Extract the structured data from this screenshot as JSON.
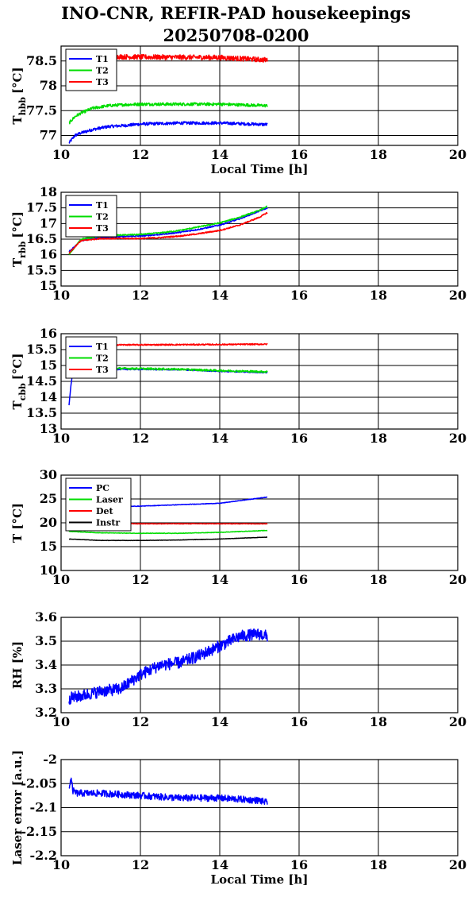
{
  "title": [
    "INO-CNR, REFIR-PAD housekeepings",
    "20250708-0200"
  ],
  "chart_data": [
    {
      "type": "line",
      "ylabel_main": "T",
      "ylabel_sub": "hbb",
      "ylabel_unit": "[°C]",
      "xlabel": "Local Time [h]",
      "xlim": [
        10,
        20
      ],
      "ylim": [
        76.8,
        78.8
      ],
      "xticks": [
        "10",
        "12",
        "14",
        "16",
        "18",
        "20"
      ],
      "yticks": [
        "77",
        "77.5",
        "78",
        "78.5"
      ],
      "grid": true,
      "legend": "top-left",
      "series": [
        {
          "name": "T1",
          "color": "#0000ff",
          "x": [
            10.2,
            10.35,
            10.5,
            10.8,
            11.2,
            11.6,
            12.0,
            13.0,
            14.0,
            15.2
          ],
          "y": [
            76.85,
            77.0,
            77.05,
            77.12,
            77.18,
            77.2,
            77.23,
            77.25,
            77.25,
            77.22
          ],
          "noise": 0.03
        },
        {
          "name": "T2",
          "color": "#00dd00",
          "x": [
            10.2,
            10.35,
            10.5,
            10.8,
            11.2,
            11.6,
            12.0,
            13.0,
            14.0,
            15.2
          ],
          "y": [
            77.25,
            77.38,
            77.45,
            77.55,
            77.6,
            77.62,
            77.63,
            77.63,
            77.63,
            77.6
          ],
          "noise": 0.03
        },
        {
          "name": "T3",
          "color": "#ff0000",
          "x": [
            10.2,
            12.0,
            14.0,
            15.2
          ],
          "y": [
            78.6,
            78.58,
            78.57,
            78.52
          ],
          "noise": 0.05
        }
      ]
    },
    {
      "type": "line",
      "ylabel_main": "T",
      "ylabel_sub": "rbb",
      "ylabel_unit": "[°C]",
      "xlabel": "",
      "xlim": [
        10,
        20
      ],
      "ylim": [
        15,
        18
      ],
      "xticks": [
        "10",
        "12",
        "14",
        "16",
        "18",
        "20"
      ],
      "yticks": [
        "15",
        "15.5",
        "16",
        "16.5",
        "17",
        "17.5",
        "18"
      ],
      "grid": true,
      "legend": "top-left",
      "series": [
        {
          "name": "T1",
          "color": "#0000ff",
          "x": [
            10.2,
            10.5,
            11.0,
            11.5,
            12.0,
            12.5,
            13.0,
            13.5,
            14.0,
            14.5,
            15.0,
            15.2
          ],
          "y": [
            16.1,
            16.45,
            16.55,
            16.58,
            16.6,
            16.65,
            16.72,
            16.82,
            16.95,
            17.15,
            17.4,
            17.5
          ],
          "noise": 0.02
        },
        {
          "name": "T2",
          "color": "#00dd00",
          "x": [
            10.2,
            10.5,
            11.0,
            11.5,
            12.0,
            12.5,
            13.0,
            13.5,
            14.0,
            14.5,
            15.0,
            15.2
          ],
          "y": [
            16.0,
            16.5,
            16.6,
            16.63,
            16.65,
            16.7,
            16.78,
            16.9,
            17.02,
            17.2,
            17.42,
            17.55
          ],
          "noise": 0.02
        },
        {
          "name": "T3",
          "color": "#ff0000",
          "x": [
            10.2,
            10.5,
            11.0,
            11.5,
            12.0,
            12.5,
            13.0,
            13.5,
            14.0,
            14.5,
            15.0,
            15.2
          ],
          "y": [
            16.05,
            16.45,
            16.52,
            16.52,
            16.52,
            16.55,
            16.6,
            16.68,
            16.78,
            16.95,
            17.2,
            17.35
          ],
          "noise": 0.02
        }
      ]
    },
    {
      "type": "line",
      "ylabel_main": "T",
      "ylabel_sub": "cbb",
      "ylabel_unit": "[°C]",
      "xlabel": "",
      "xlim": [
        10,
        20
      ],
      "ylim": [
        13,
        16
      ],
      "xticks": [
        "10",
        "12",
        "14",
        "16",
        "18",
        "20"
      ],
      "yticks": [
        "13",
        "13.5",
        "14",
        "14.5",
        "15",
        "15.5",
        "16"
      ],
      "grid": true,
      "legend": "top-left",
      "series": [
        {
          "name": "T1",
          "color": "#0000ff",
          "x": [
            10.2,
            10.25,
            10.3,
            10.6,
            12.0,
            13.0,
            14.0,
            15.2
          ],
          "y": [
            13.75,
            14.4,
            14.85,
            14.88,
            14.88,
            14.87,
            14.82,
            14.78
          ],
          "noise": 0.02
        },
        {
          "name": "T2",
          "color": "#00dd00",
          "x": [
            10.3,
            10.6,
            12.0,
            13.0,
            14.0,
            15.2
          ],
          "y": [
            14.92,
            14.92,
            14.9,
            14.88,
            14.84,
            14.8
          ],
          "noise": 0.03
        },
        {
          "name": "T3",
          "color": "#ff0000",
          "x": [
            10.3,
            12.0,
            14.0,
            15.2
          ],
          "y": [
            15.65,
            15.65,
            15.66,
            15.67
          ],
          "noise": 0.02
        }
      ]
    },
    {
      "type": "line",
      "ylabel_main": "T [°C]",
      "ylabel_sub": "",
      "ylabel_unit": "",
      "xlabel": "",
      "xlim": [
        10,
        20
      ],
      "ylim": [
        10,
        30
      ],
      "xticks": [
        "10",
        "12",
        "14",
        "16",
        "18",
        "20"
      ],
      "yticks": [
        "10",
        "15",
        "20",
        "25",
        "30"
      ],
      "grid": true,
      "legend": "top-left",
      "series": [
        {
          "name": "PC",
          "color": "#0000ff",
          "x": [
            10.2,
            11.0,
            12.0,
            13.0,
            14.0,
            15.2
          ],
          "y": [
            23.2,
            23.3,
            23.5,
            23.8,
            24.1,
            25.4
          ],
          "noise": 0.05
        },
        {
          "name": "Laser",
          "color": "#00dd00",
          "x": [
            10.2,
            11.0,
            12.0,
            13.0,
            14.0,
            15.2
          ],
          "y": [
            18.2,
            17.9,
            17.8,
            17.8,
            18.0,
            18.4
          ],
          "noise": 0.05
        },
        {
          "name": "Det",
          "color": "#ff0000",
          "x": [
            10.2,
            12.0,
            14.0,
            15.2
          ],
          "y": [
            19.8,
            19.8,
            19.8,
            19.8
          ],
          "noise": 0.06
        },
        {
          "name": "Instr",
          "color": "#000000",
          "x": [
            10.2,
            11.0,
            12.0,
            13.0,
            14.0,
            15.2
          ],
          "y": [
            16.6,
            16.3,
            16.3,
            16.4,
            16.6,
            17.0
          ],
          "noise": 0.03
        }
      ]
    },
    {
      "type": "line",
      "ylabel_main": "RH [%]",
      "ylabel_sub": "",
      "ylabel_unit": "",
      "xlabel": "",
      "xlim": [
        10,
        20
      ],
      "ylim": [
        3.2,
        3.6
      ],
      "xticks": [
        "10",
        "12",
        "14",
        "16",
        "18",
        "20"
      ],
      "yticks": [
        "3.2",
        "3.3",
        "3.4",
        "3.5",
        "3.6"
      ],
      "grid": true,
      "legend": "none",
      "series": [
        {
          "name": "",
          "color": "#0000ff",
          "x": [
            10.2,
            10.5,
            11.0,
            11.5,
            12.0,
            12.5,
            13.0,
            13.5,
            14.0,
            14.5,
            15.0,
            15.2
          ],
          "y": [
            3.26,
            3.27,
            3.29,
            3.3,
            3.36,
            3.4,
            3.41,
            3.44,
            3.48,
            3.52,
            3.53,
            3.52
          ],
          "noise": 0.025
        }
      ]
    },
    {
      "type": "line",
      "ylabel_main": "Laser error [a.u.]",
      "ylabel_sub": "",
      "ylabel_unit": "",
      "xlabel": "Local Time [h]",
      "xlim": [
        10,
        20
      ],
      "ylim": [
        -2.2,
        -2
      ],
      "xticks": [
        "10",
        "12",
        "14",
        "16",
        "18",
        "20"
      ],
      "yticks": [
        "-2.2",
        "-2.15",
        "-2.1",
        "-2.05",
        "-2"
      ],
      "grid": true,
      "legend": "none",
      "series": [
        {
          "name": "",
          "color": "#0000ff",
          "x": [
            10.2,
            10.25,
            10.3,
            10.4,
            11.0,
            12.0,
            13.0,
            14.0,
            15.0,
            15.2
          ],
          "y": [
            -2.06,
            -2.04,
            -2.065,
            -2.07,
            -2.07,
            -2.075,
            -2.08,
            -2.08,
            -2.085,
            -2.09
          ],
          "noise": 0.007
        }
      ]
    }
  ]
}
